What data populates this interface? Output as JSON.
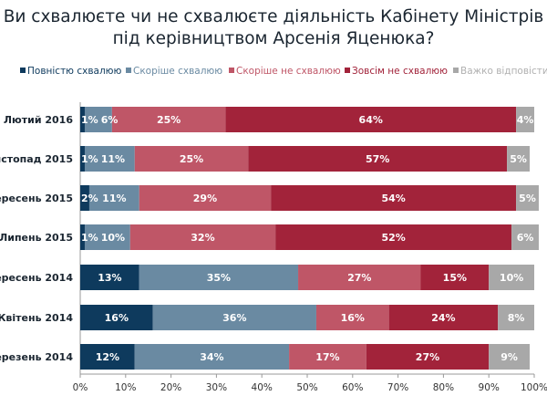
{
  "chart_data": {
    "type": "bar",
    "orientation": "horizontal",
    "stacked": true,
    "title": "Ви схвалюєте чи не схвалюєте діяльність Кабінету Міністрів під керівництвом Арсенія Яценюка?",
    "categories": [
      "Лютий 2016",
      "Листопад 2015",
      "Вересень 2015",
      "Липень 2015",
      "Вересень 2014",
      "Квітень 2014",
      "Березень 2014"
    ],
    "series": [
      {
        "name": "Повністю схвалюю",
        "color": "#0e3a5d",
        "values": [
          1,
          1,
          2,
          1,
          13,
          16,
          12
        ]
      },
      {
        "name": "Скоріше схвалюю",
        "color": "#6a8aa2",
        "values": [
          6,
          11,
          11,
          10,
          35,
          36,
          34
        ]
      },
      {
        "name": "Скоріше не схвалюю",
        "color": "#bf5667",
        "values": [
          25,
          25,
          29,
          32,
          27,
          16,
          17
        ]
      },
      {
        "name": "Зовсім не схвалюю",
        "color": "#a2233a",
        "values": [
          64,
          57,
          54,
          52,
          15,
          24,
          27
        ]
      },
      {
        "name": "Важко відповісти",
        "color": "#a8a8a8",
        "values": [
          4,
          5,
          5,
          6,
          10,
          8,
          9
        ]
      }
    ],
    "legend_text_colors": [
      "#0e3a5d",
      "#6a8aa2",
      "#bf5667",
      "#a2233a",
      "#b0b0b0"
    ],
    "xlim": [
      0,
      100
    ],
    "xticks": [
      "0%",
      "10%",
      "20%",
      "30%",
      "40%",
      "50%",
      "60%",
      "70%",
      "80%",
      "90%",
      "100%"
    ],
    "legend_position": "top",
    "grid": false
  }
}
